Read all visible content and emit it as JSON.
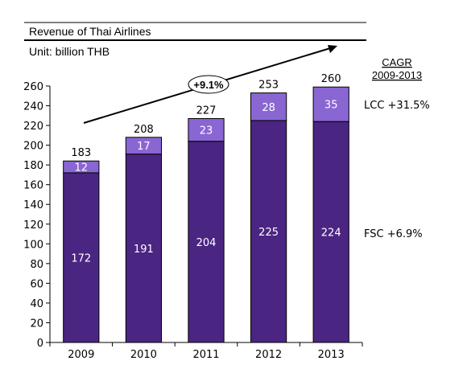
{
  "chart_data": {
    "type": "bar",
    "stacked": true,
    "title": "Revenue of Thai Airlines",
    "subtitle": "Unit: billion THB",
    "categories": [
      "2009",
      "2010",
      "2011",
      "2012",
      "2013"
    ],
    "series": [
      {
        "name": "FSC",
        "values": [
          172,
          191,
          204,
          225,
          224
        ],
        "color": "#4b2582"
      },
      {
        "name": "LCC",
        "values": [
          12,
          17,
          23,
          28,
          35
        ],
        "color": "#8a66d3"
      }
    ],
    "totals": [
      183,
      208,
      227,
      253,
      260
    ],
    "ylim": [
      0,
      260
    ],
    "yticks": [
      0,
      20,
      40,
      60,
      80,
      100,
      120,
      140,
      160,
      180,
      200,
      220,
      240,
      260
    ],
    "trend_label": "+9.1%",
    "cagr_header": [
      "CAGR",
      "2009-2013"
    ],
    "cagr_labels": {
      "LCC": "LCC +31.5%",
      "FSC": "FSC +6.9%"
    },
    "grid": false,
    "legend": "none"
  }
}
